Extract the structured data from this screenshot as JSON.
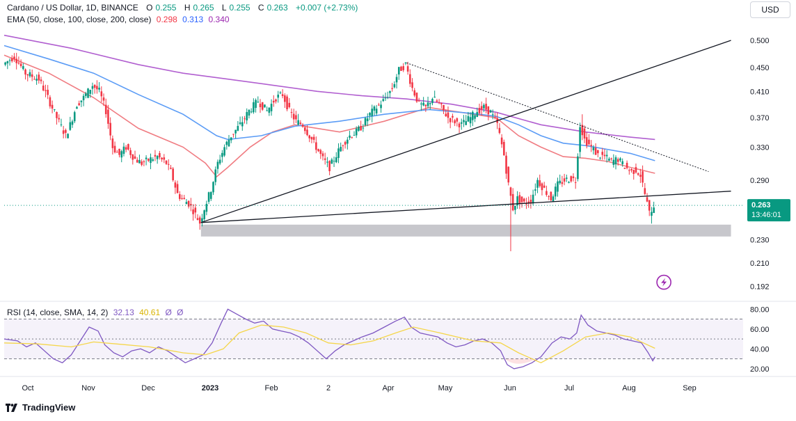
{
  "header": {
    "symbol": "Cardano / US Dollar, 1D, BINANCE",
    "ohlc": [
      {
        "k": "O",
        "v": "0.255"
      },
      {
        "k": "H",
        "v": "0.265"
      },
      {
        "k": "L",
        "v": "0.255"
      },
      {
        "k": "C",
        "v": "0.263"
      }
    ],
    "change": "+0.007 (+2.73%)",
    "ema_label": "EMA (50, close, 100, close, 200, close)",
    "ema_values": [
      "0.298",
      "0.313",
      "0.340"
    ],
    "rsi_label": "RSI (14, close, SMA, 14, 2)",
    "rsi_values": [
      "32.13",
      "40.61"
    ],
    "rsi_extra": [
      "Ø",
      "Ø"
    ],
    "currency": "USD"
  },
  "colors": {
    "up": "#089981",
    "down": "#f23645",
    "ema50": "#f07c82",
    "ema100": "#5b9cf6",
    "ema200": "#b15fd0",
    "rsi": "#7e57c2",
    "rsi_ma": "#f5d64a",
    "support_zone": "#c7c7cc",
    "price_tag": "#089981"
  },
  "price_tag": {
    "price": "0.263",
    "countdown": "13:46:01"
  },
  "footer": {
    "brand": "TradingView"
  },
  "chart_data": [
    {
      "type": "candlestick",
      "title": "Cardano / US Dollar, 1D, BINANCE",
      "x_ticks": [
        "Oct",
        "Nov",
        "Dec",
        "2023",
        "Feb",
        "2",
        "Apr",
        "May",
        "Jun",
        "Jul",
        "Aug",
        "Sep"
      ],
      "y_ticks": [
        "0.500",
        "0.450",
        "0.410",
        "0.370",
        "0.330",
        "0.290",
        "0.230",
        "0.210",
        "0.192"
      ],
      "y_scale": "log",
      "ylim": [
        0.185,
        0.525
      ],
      "grid": false,
      "price_path": [
        [
          0,
          0.455
        ],
        [
          10,
          0.47
        ],
        [
          20,
          0.44
        ],
        [
          32,
          0.43
        ],
        [
          40,
          0.4
        ],
        [
          48,
          0.37
        ],
        [
          56,
          0.345
        ],
        [
          60,
          0.36
        ],
        [
          66,
          0.39
        ],
        [
          72,
          0.4
        ],
        [
          80,
          0.42
        ],
        [
          86,
          0.41
        ],
        [
          92,
          0.38
        ],
        [
          98,
          0.33
        ],
        [
          104,
          0.32
        ],
        [
          110,
          0.33
        ],
        [
          118,
          0.315
        ],
        [
          124,
          0.31
        ],
        [
          132,
          0.315
        ],
        [
          138,
          0.318
        ],
        [
          146,
          0.31
        ],
        [
          150,
          0.3
        ],
        [
          156,
          0.275
        ],
        [
          160,
          0.27
        ],
        [
          166,
          0.265
        ],
        [
          170,
          0.258
        ],
        [
          176,
          0.246
        ],
        [
          180,
          0.26
        ],
        [
          186,
          0.28
        ],
        [
          192,
          0.31
        ],
        [
          198,
          0.33
        ],
        [
          204,
          0.345
        ],
        [
          212,
          0.36
        ],
        [
          220,
          0.38
        ],
        [
          228,
          0.395
        ],
        [
          236,
          0.38
        ],
        [
          244,
          0.4
        ],
        [
          250,
          0.405
        ],
        [
          256,
          0.38
        ],
        [
          262,
          0.365
        ],
        [
          268,
          0.36
        ],
        [
          274,
          0.345
        ],
        [
          280,
          0.33
        ],
        [
          286,
          0.315
        ],
        [
          292,
          0.305
        ],
        [
          298,
          0.32
        ],
        [
          304,
          0.335
        ],
        [
          310,
          0.345
        ],
        [
          316,
          0.35
        ],
        [
          322,
          0.36
        ],
        [
          328,
          0.375
        ],
        [
          334,
          0.385
        ],
        [
          340,
          0.395
        ],
        [
          348,
          0.415
        ],
        [
          354,
          0.445
        ],
        [
          360,
          0.455
        ],
        [
          366,
          0.415
        ],
        [
          372,
          0.39
        ],
        [
          378,
          0.385
        ],
        [
          384,
          0.4
        ],
        [
          390,
          0.39
        ],
        [
          398,
          0.37
        ],
        [
          404,
          0.365
        ],
        [
          410,
          0.36
        ],
        [
          418,
          0.37
        ],
        [
          424,
          0.38
        ],
        [
          430,
          0.385
        ],
        [
          436,
          0.378
        ],
        [
          442,
          0.36
        ],
        [
          448,
          0.32
        ],
        [
          452,
          0.285
        ],
        [
          456,
          0.26
        ],
        [
          460,
          0.27
        ],
        [
          466,
          0.265
        ],
        [
          472,
          0.268
        ],
        [
          478,
          0.29
        ],
        [
          484,
          0.28
        ],
        [
          490,
          0.27
        ],
        [
          496,
          0.285
        ],
        [
          502,
          0.29
        ],
        [
          508,
          0.292
        ],
        [
          512,
          0.29
        ],
        [
          516,
          0.36
        ],
        [
          520,
          0.34
        ],
        [
          526,
          0.33
        ],
        [
          532,
          0.32
        ],
        [
          538,
          0.318
        ],
        [
          544,
          0.312
        ],
        [
          550,
          0.315
        ],
        [
          556,
          0.306
        ],
        [
          562,
          0.3
        ],
        [
          566,
          0.302
        ],
        [
          570,
          0.296
        ],
        [
          574,
          0.275
        ],
        [
          578,
          0.255
        ],
        [
          582,
          0.263
        ]
      ],
      "wicks": [
        [
          452,
          0.22
        ],
        [
          578,
          0.245
        ],
        [
          516,
          0.375
        ],
        [
          360,
          0.46
        ]
      ],
      "last_price": 0.263,
      "series": [
        {
          "name": "EMA 50",
          "values": [
            [
              0,
              0.472
            ],
            [
              40,
              0.44
            ],
            [
              80,
              0.4
            ],
            [
              120,
              0.355
            ],
            [
              160,
              0.33
            ],
            [
              180,
              0.31
            ],
            [
              190,
              0.294
            ],
            [
              200,
              0.305
            ],
            [
              220,
              0.33
            ],
            [
              240,
              0.35
            ],
            [
              260,
              0.36
            ],
            [
              300,
              0.35
            ],
            [
              340,
              0.365
            ],
            [
              360,
              0.375
            ],
            [
              380,
              0.385
            ],
            [
              420,
              0.375
            ],
            [
              440,
              0.37
            ],
            [
              460,
              0.345
            ],
            [
              480,
              0.33
            ],
            [
              500,
              0.318
            ],
            [
              520,
              0.316
            ],
            [
              540,
              0.312
            ],
            [
              560,
              0.305
            ],
            [
              582,
              0.298
            ]
          ]
        },
        {
          "name": "EMA 100",
          "values": [
            [
              0,
              0.49
            ],
            [
              40,
              0.465
            ],
            [
              80,
              0.44
            ],
            [
              120,
              0.405
            ],
            [
              160,
              0.375
            ],
            [
              190,
              0.345
            ],
            [
              200,
              0.34
            ],
            [
              230,
              0.345
            ],
            [
              260,
              0.358
            ],
            [
              300,
              0.365
            ],
            [
              340,
              0.375
            ],
            [
              380,
              0.382
            ],
            [
              420,
              0.376
            ],
            [
              440,
              0.372
            ],
            [
              460,
              0.36
            ],
            [
              480,
              0.345
            ],
            [
              500,
              0.335
            ],
            [
              520,
              0.332
            ],
            [
              560,
              0.322
            ],
            [
              582,
              0.313
            ]
          ]
        },
        {
          "name": "EMA 200",
          "values": [
            [
              0,
              0.51
            ],
            [
              60,
              0.485
            ],
            [
              120,
              0.455
            ],
            [
              160,
              0.44
            ],
            [
              200,
              0.43
            ],
            [
              240,
              0.42
            ],
            [
              280,
              0.41
            ],
            [
              320,
              0.403
            ],
            [
              360,
              0.398
            ],
            [
              400,
              0.39
            ],
            [
              440,
              0.378
            ],
            [
              480,
              0.36
            ],
            [
              520,
              0.35
            ],
            [
              560,
              0.343
            ],
            [
              582,
              0.34
            ]
          ]
        }
      ],
      "trendlines": [
        {
          "name": "ascending",
          "from": [
            176,
            0.246
          ],
          "to": [
            650,
            0.5
          ],
          "style": "solid"
        },
        {
          "name": "support-line",
          "from": [
            176,
            0.246
          ],
          "to": [
            650,
            0.278
          ],
          "style": "solid"
        },
        {
          "name": "descending",
          "from": [
            360,
            0.458
          ],
          "to": [
            630,
            0.3
          ],
          "style": "dotted"
        }
      ],
      "zones": [
        {
          "name": "support-zone",
          "low": 0.233,
          "high": 0.244,
          "from": 176,
          "to": 650
        }
      ]
    },
    {
      "type": "line",
      "title": "RSI (14, close, SMA, 14, 2)",
      "y_ticks": [
        "80.00",
        "60.00",
        "40.00",
        "20.00"
      ],
      "ylim": [
        15,
        83
      ],
      "levels": [
        70,
        50,
        30
      ],
      "series": [
        {
          "name": "RSI",
          "values": [
            [
              0,
              50
            ],
            [
              12,
              48
            ],
            [
              20,
              42
            ],
            [
              28,
              46
            ],
            [
              36,
              38
            ],
            [
              44,
              30
            ],
            [
              52,
              26
            ],
            [
              60,
              34
            ],
            [
              68,
              48
            ],
            [
              76,
              62
            ],
            [
              84,
              58
            ],
            [
              90,
              44
            ],
            [
              98,
              36
            ],
            [
              106,
              32
            ],
            [
              114,
              38
            ],
            [
              122,
              40
            ],
            [
              130,
              36
            ],
            [
              138,
              42
            ],
            [
              146,
              38
            ],
            [
              154,
              32
            ],
            [
              162,
              26
            ],
            [
              170,
              30
            ],
            [
              178,
              34
            ],
            [
              186,
              46
            ],
            [
              194,
              66
            ],
            [
              200,
              80
            ],
            [
              208,
              75
            ],
            [
              216,
              70
            ],
            [
              224,
              66
            ],
            [
              232,
              68
            ],
            [
              240,
              60
            ],
            [
              248,
              58
            ],
            [
              256,
              56
            ],
            [
              264,
              52
            ],
            [
              272,
              46
            ],
            [
              280,
              38
            ],
            [
              288,
              30
            ],
            [
              296,
              38
            ],
            [
              304,
              44
            ],
            [
              312,
              48
            ],
            [
              320,
              52
            ],
            [
              330,
              56
            ],
            [
              340,
              62
            ],
            [
              350,
              68
            ],
            [
              358,
              72
            ],
            [
              364,
              62
            ],
            [
              372,
              56
            ],
            [
              380,
              54
            ],
            [
              388,
              52
            ],
            [
              396,
              46
            ],
            [
              404,
              42
            ],
            [
              412,
              44
            ],
            [
              420,
              48
            ],
            [
              428,
              50
            ],
            [
              436,
              46
            ],
            [
              444,
              38
            ],
            [
              450,
              24
            ],
            [
              456,
              20
            ],
            [
              464,
              22
            ],
            [
              472,
              26
            ],
            [
              480,
              32
            ],
            [
              490,
              46
            ],
            [
              498,
              52
            ],
            [
              506,
              50
            ],
            [
              512,
              56
            ],
            [
              516,
              74
            ],
            [
              522,
              64
            ],
            [
              530,
              58
            ],
            [
              538,
              56
            ],
            [
              546,
              54
            ],
            [
              554,
              50
            ],
            [
              562,
              48
            ],
            [
              570,
              46
            ],
            [
              576,
              36
            ],
            [
              580,
              28
            ],
            [
              582,
              32
            ]
          ]
        },
        {
          "name": "RSI MA",
          "values": [
            [
              0,
              46
            ],
            [
              30,
              45
            ],
            [
              60,
              42
            ],
            [
              80,
              47
            ],
            [
              100,
              45
            ],
            [
              130,
              42
            ],
            [
              160,
              36
            ],
            [
              180,
              34
            ],
            [
              196,
              40
            ],
            [
              210,
              56
            ],
            [
              230,
              64
            ],
            [
              250,
              62
            ],
            [
              270,
              56
            ],
            [
              290,
              46
            ],
            [
              310,
              44
            ],
            [
              330,
              48
            ],
            [
              350,
              56
            ],
            [
              366,
              62
            ],
            [
              390,
              56
            ],
            [
              420,
              48
            ],
            [
              444,
              46
            ],
            [
              460,
              36
            ],
            [
              480,
              26
            ],
            [
              500,
              38
            ],
            [
              520,
              52
            ],
            [
              540,
              56
            ],
            [
              560,
              52
            ],
            [
              582,
              40.61
            ]
          ]
        }
      ]
    }
  ]
}
